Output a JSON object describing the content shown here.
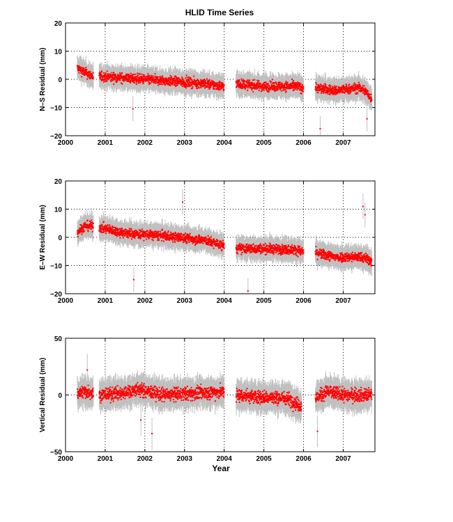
{
  "chart_data": [
    {
      "type": "scatter",
      "title": "HLID Time Series",
      "xlabel": "",
      "ylabel": "N–S Residual (mm)",
      "xlim": [
        2000,
        2007.8
      ],
      "ylim": [
        -20,
        20
      ],
      "xticks": [
        "2000",
        "2001",
        "2002",
        "2003",
        "2004",
        "2005",
        "2006",
        "2007"
      ],
      "yticks": [
        "-20",
        "-10",
        "0",
        "10",
        "20"
      ],
      "grid": true,
      "colors": {
        "points": "#ff0000",
        "errorbars": "#c0c0c0"
      },
      "series": [
        {
          "segments": [
            {
              "x": [
                2000.3,
                2000.42,
                2000.55,
                2000.7
              ],
              "y": [
                4,
                3,
                2,
                1
              ]
            },
            {
              "x": [
                2000.85,
                2001.5,
                2002.5,
                2003.5,
                2004.0
              ],
              "y": [
                1,
                0.5,
                -0.5,
                -1.5,
                -2.5
              ]
            },
            {
              "x": [
                2004.3,
                2005.0,
                2005.9
              ],
              "y": [
                -1.5,
                -2.5,
                -2.5
              ]
            },
            {
              "x": [
                2005.9,
                2006.0
              ],
              "y": [
                -3,
                -3
              ]
            },
            {
              "x": [
                2006.3,
                2006.8,
                2007.4,
                2007.55,
                2007.72
              ],
              "y": [
                -3,
                -4,
                -3,
                -4,
                -7
              ]
            }
          ],
          "outliers": [
            {
              "x": 2001.7,
              "y": -10.5
            },
            {
              "x": 2006.42,
              "y": -17.5
            },
            {
              "x": 2007.6,
              "y": -14
            }
          ]
        }
      ]
    },
    {
      "type": "scatter",
      "title": "",
      "xlabel": "",
      "ylabel": "E–W Residual (mm)",
      "xlim": [
        2000,
        2007.8
      ],
      "ylim": [
        -20,
        20
      ],
      "xticks": [
        "2000",
        "2001",
        "2002",
        "2003",
        "2004",
        "2005",
        "2006",
        "2007"
      ],
      "yticks": [
        "-20",
        "-10",
        "0",
        "10",
        "20"
      ],
      "grid": true,
      "colors": {
        "points": "#ff0000",
        "errorbars": "#c0c0c0"
      },
      "series": [
        {
          "segments": [
            {
              "x": [
                2000.3,
                2000.5,
                2000.7
              ],
              "y": [
                2,
                4,
                4
              ]
            },
            {
              "x": [
                2000.85,
                2001.5,
                2002.5,
                2003.5,
                2004.0
              ],
              "y": [
                3.5,
                1.5,
                0.5,
                -1,
                -3
              ]
            },
            {
              "x": [
                2004.3,
                2005.0,
                2005.9
              ],
              "y": [
                -4,
                -4,
                -4.5
              ]
            },
            {
              "x": [
                2005.9,
                2006.0
              ],
              "y": [
                -5,
                -5
              ]
            },
            {
              "x": [
                2006.3,
                2006.8,
                2007.4,
                2007.6,
                2007.72
              ],
              "y": [
                -5.5,
                -7,
                -7,
                -7.5,
                -9
              ]
            }
          ],
          "outliers": [
            {
              "x": 2001.72,
              "y": -15
            },
            {
              "x": 2002.95,
              "y": 12.5
            },
            {
              "x": 2007.5,
              "y": 11
            },
            {
              "x": 2007.55,
              "y": 8
            },
            {
              "x": 2004.6,
              "y": -19
            }
          ]
        }
      ]
    },
    {
      "type": "scatter",
      "title": "",
      "xlabel": "Year",
      "ylabel": "Vertical Residual (mm)",
      "xlim": [
        2000,
        2007.8
      ],
      "ylim": [
        -50,
        50
      ],
      "xticks": [
        "2000",
        "2001",
        "2002",
        "2003",
        "2004",
        "2005",
        "2006",
        "2007"
      ],
      "yticks": [
        "-50",
        "0",
        "50"
      ],
      "grid": true,
      "colors": {
        "points": "#ff0000",
        "errorbars": "#c0c0c0"
      },
      "series": [
        {
          "segments": [
            {
              "x": [
                2000.3,
                2000.5,
                2000.7
              ],
              "y": [
                2,
                3,
                2
              ]
            },
            {
              "x": [
                2000.85,
                2001.5,
                2001.8,
                2002.5,
                2003.5,
                2004.0
              ],
              "y": [
                0,
                2,
                5,
                0,
                2,
                3
              ]
            },
            {
              "x": [
                2004.3,
                2005.0,
                2005.6,
                2005.95
              ],
              "y": [
                0,
                -2,
                -3,
                -10
              ]
            },
            {
              "x": [
                2006.3,
                2006.6,
                2007.0,
                2007.72
              ],
              "y": [
                -3,
                3,
                0,
                0
              ]
            }
          ],
          "outliers": [
            {
              "x": 2002.18,
              "y": -34
            },
            {
              "x": 2006.35,
              "y": -32
            },
            {
              "x": 2000.55,
              "y": 22
            },
            {
              "x": 2001.9,
              "y": -22
            }
          ]
        }
      ]
    }
  ]
}
